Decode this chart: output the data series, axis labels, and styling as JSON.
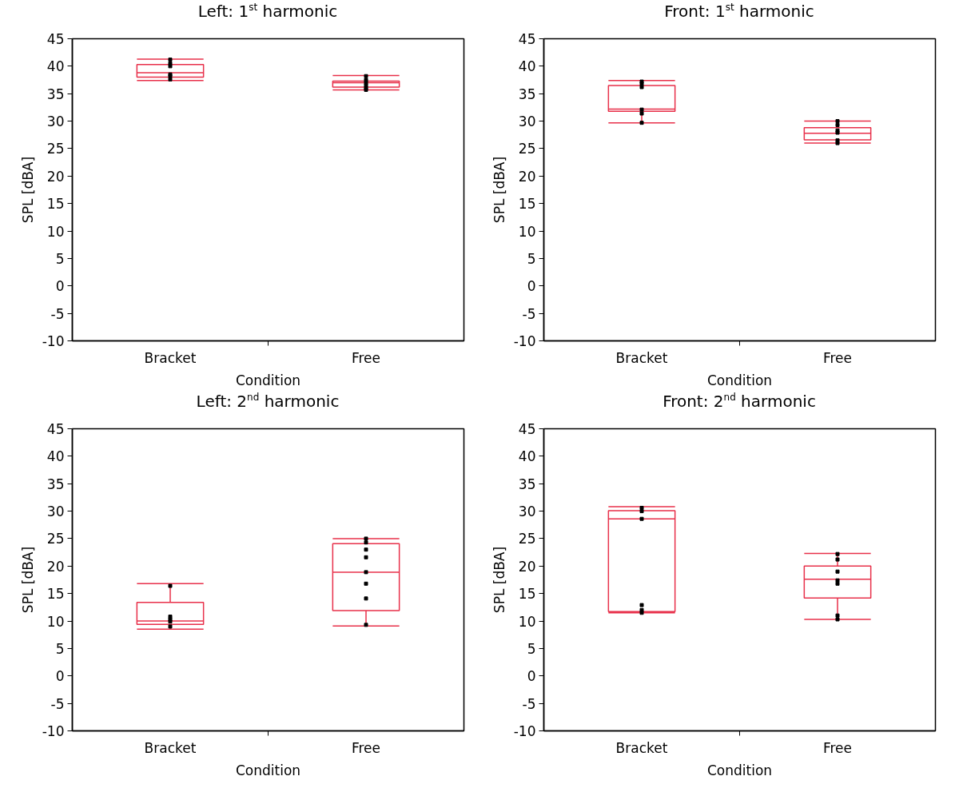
{
  "chart_data": [
    {
      "type": "box",
      "title": "Left: 1$^{st}$ harmonic",
      "xlabel": "Condition",
      "ylabel": "SPL [dBA]",
      "categories": [
        "Bracket",
        "Free"
      ],
      "color": "#e8304a",
      "ylim": [
        -10,
        45
      ],
      "yticks": [
        -10,
        -5,
        0,
        5,
        10,
        15,
        20,
        25,
        30,
        35,
        40,
        45
      ],
      "grid": false,
      "boxes": [
        {
          "low": 37.4,
          "q1": 38.0,
          "median": 38.8,
          "q3": 40.3,
          "high": 41.3
        },
        {
          "low": 35.7,
          "q1": 36.2,
          "median": 37.0,
          "q3": 37.3,
          "high": 38.3
        }
      ],
      "series": [
        {
          "type": "scatter",
          "marker": "square",
          "color": "#000000",
          "x": [
            "Bracket",
            "Bracket",
            "Bracket",
            "Bracket",
            "Bracket",
            "Bracket",
            "Free",
            "Free",
            "Free",
            "Free",
            "Free",
            "Free"
          ],
          "values": [
            41.2,
            40.5,
            40.0,
            38.5,
            38.2,
            37.6,
            38.2,
            37.5,
            37.0,
            36.5,
            36.0,
            35.7
          ]
        }
      ]
    },
    {
      "type": "box",
      "title": "Front: 1$^{st}$ harmonic",
      "xlabel": "Condition",
      "ylabel": "SPL [dBA]",
      "categories": [
        "Bracket",
        "Free"
      ],
      "color": "#e8304a",
      "ylim": [
        -10,
        45
      ],
      "yticks": [
        -10,
        -5,
        0,
        5,
        10,
        15,
        20,
        25,
        30,
        35,
        40,
        45
      ],
      "grid": false,
      "boxes": [
        {
          "low": 29.7,
          "q1": 31.8,
          "median": 32.2,
          "q3": 36.5,
          "high": 37.4
        },
        {
          "low": 26.0,
          "q1": 26.6,
          "median": 27.8,
          "q3": 28.8,
          "high": 30.0
        }
      ],
      "series": [
        {
          "type": "scatter",
          "marker": "square",
          "color": "#000000",
          "x": [
            "Bracket",
            "Bracket",
            "Bracket",
            "Bracket",
            "Bracket",
            "Bracket",
            "Free",
            "Free",
            "Free",
            "Free",
            "Free",
            "Free"
          ],
          "values": [
            37.2,
            36.8,
            36.2,
            32.1,
            31.4,
            29.7,
            30.0,
            29.3,
            28.3,
            27.9,
            26.5,
            26.0
          ]
        }
      ]
    },
    {
      "type": "box",
      "title": "Left: 2$^{nd}$ harmonic",
      "xlabel": "Condition",
      "ylabel": "SPL [dBA]",
      "categories": [
        "Bracket",
        "Free"
      ],
      "color": "#e8304a",
      "ylim": [
        -10,
        45
      ],
      "yticks": [
        -10,
        -5,
        0,
        5,
        10,
        15,
        20,
        25,
        30,
        35,
        40,
        45
      ],
      "grid": false,
      "boxes": [
        {
          "low": 8.5,
          "q1": 9.4,
          "median": 10.0,
          "q3": 13.4,
          "high": 16.8
        },
        {
          "low": 9.1,
          "q1": 11.9,
          "median": 18.9,
          "q3": 24.1,
          "high": 25.0
        }
      ],
      "series": [
        {
          "type": "scatter",
          "marker": "square",
          "color": "#000000",
          "x": [
            "Bracket",
            "Bracket",
            "Bracket",
            "Bracket",
            "Bracket",
            "Free",
            "Free",
            "Free",
            "Free",
            "Free",
            "Free",
            "Free",
            "Free"
          ],
          "values": [
            16.4,
            10.8,
            10.3,
            9.9,
            9.0,
            25.0,
            24.3,
            23.0,
            21.6,
            18.9,
            16.8,
            14.1,
            9.3
          ]
        }
      ]
    },
    {
      "type": "box",
      "title": "Front: 2$^{nd}$ harmonic",
      "xlabel": "Condition",
      "ylabel": "SPL [dBA]",
      "categories": [
        "Bracket",
        "Free"
      ],
      "color": "#e8304a",
      "ylim": [
        -10,
        45
      ],
      "yticks": [
        -10,
        -5,
        0,
        5,
        10,
        15,
        20,
        25,
        30,
        35,
        40,
        45
      ],
      "grid": false,
      "boxes": [
        {
          "low": 11.5,
          "q1": 11.7,
          "median": 28.6,
          "q3": 30.1,
          "high": 30.8
        },
        {
          "low": 10.3,
          "q1": 14.2,
          "median": 17.6,
          "q3": 20.0,
          "high": 22.3
        }
      ],
      "series": [
        {
          "type": "scatter",
          "marker": "square",
          "color": "#000000",
          "x": [
            "Bracket",
            "Bracket",
            "Bracket",
            "Bracket",
            "Bracket",
            "Bracket",
            "Free",
            "Free",
            "Free",
            "Free",
            "Free",
            "Free",
            "Free"
          ],
          "values": [
            30.6,
            30.0,
            28.6,
            12.9,
            12.0,
            11.5,
            22.2,
            21.2,
            19.0,
            17.4,
            16.8,
            11.0,
            10.3
          ]
        }
      ]
    }
  ]
}
